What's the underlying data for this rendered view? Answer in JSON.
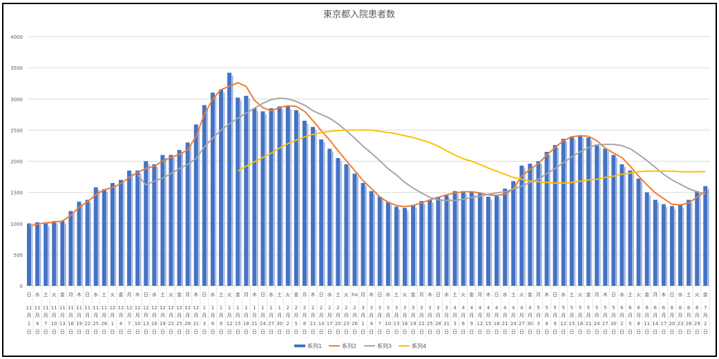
{
  "chart_data": {
    "type": "bar",
    "title": "東京都入院患者数",
    "ylim": [
      0,
      4000
    ],
    "yticks": [
      0,
      500,
      1000,
      1500,
      2000,
      2500,
      3000,
      3500,
      4000
    ],
    "grid": true,
    "legend_position": "bottom",
    "x_labels": {
      "weekdays": [
        "日",
        "水",
        "土",
        "火",
        "金",
        "月",
        "木",
        "日",
        "水",
        "土",
        "火",
        "金",
        "月",
        "木",
        "日",
        "水",
        "土",
        "火",
        "金",
        "月",
        "木",
        "日",
        "水",
        "土",
        "火",
        "金",
        "月",
        "木",
        "日",
        "水",
        "土",
        "火",
        "金",
        "月",
        "木",
        "日",
        "水",
        "土",
        "火",
        "ha",
        "月",
        "木",
        "日",
        "水",
        "土",
        "火",
        "金",
        "月",
        "木",
        "日",
        "水",
        "土",
        "火",
        "金",
        "月",
        "木",
        "日",
        "水",
        "土",
        "火",
        "金",
        "月",
        "木",
        "日",
        "水",
        "土",
        "火",
        "金",
        "月",
        "木",
        "日",
        "水",
        "土",
        "火",
        "金",
        "月",
        "木",
        "日",
        "水",
        "土",
        "火",
        "金"
      ],
      "months": [
        11,
        11,
        11,
        11,
        11,
        11,
        11,
        11,
        11,
        11,
        12,
        12,
        12,
        12,
        12,
        12,
        12,
        12,
        12,
        12,
        12,
        1,
        1,
        1,
        1,
        1,
        1,
        1,
        1,
        1,
        1,
        2,
        2,
        2,
        2,
        2,
        2,
        2,
        2,
        2,
        3,
        3,
        3,
        3,
        3,
        3,
        3,
        3,
        3,
        3,
        3,
        4,
        4,
        4,
        4,
        4,
        4,
        4,
        4,
        4,
        4,
        5,
        5,
        5,
        5,
        5,
        5,
        5,
        5,
        5,
        5,
        6,
        6,
        6,
        6,
        6,
        6,
        6,
        6,
        6,
        6,
        7
      ],
      "days": [
        1,
        4,
        7,
        10,
        13,
        16,
        19,
        22,
        25,
        28,
        1,
        4,
        7,
        10,
        13,
        16,
        19,
        22,
        25,
        28,
        31,
        3,
        6,
        9,
        12,
        15,
        18,
        21,
        24,
        27,
        30,
        2,
        5,
        8,
        11,
        14,
        17,
        20,
        23,
        26,
        1,
        4,
        7,
        10,
        13,
        16,
        19,
        22,
        25,
        28,
        31,
        3,
        6,
        9,
        12,
        15,
        18,
        21,
        24,
        27,
        30,
        3,
        6,
        9,
        12,
        15,
        18,
        21,
        24,
        27,
        30,
        2,
        5,
        8,
        11,
        14,
        17,
        20,
        23,
        26,
        29,
        2
      ],
      "month_suffix": "月",
      "day_suffix": "日"
    },
    "series": [
      {
        "name": "系列1",
        "type": "bar",
        "color": "#4472C4",
        "values": [
          1000,
          1020,
          1000,
          1040,
          1040,
          1200,
          1350,
          1380,
          1580,
          1550,
          1650,
          1700,
          1850,
          1850,
          2000,
          1950,
          2100,
          2100,
          2180,
          2300,
          2590,
          2900,
          3100,
          3150,
          3420,
          3020,
          3050,
          2850,
          2800,
          2850,
          2880,
          2880,
          2820,
          2650,
          2550,
          2350,
          2200,
          2050,
          1950,
          1800,
          1650,
          1520,
          1430,
          1350,
          1270,
          1250,
          1300,
          1360,
          1380,
          1430,
          1450,
          1520,
          1520,
          1500,
          1480,
          1430,
          1460,
          1560,
          1680,
          1930,
          1960,
          2000,
          2150,
          2260,
          2360,
          2400,
          2420,
          2380,
          2270,
          2200,
          2100,
          1950,
          1850,
          1720,
          1500,
          1380,
          1310,
          1280,
          1300,
          1380,
          1520,
          1600
        ]
      },
      {
        "name": "系列2",
        "type": "line",
        "color": "#ED7D31",
        "values": [
          960,
          990,
          1010,
          1020,
          1040,
          1130,
          1260,
          1350,
          1460,
          1540,
          1580,
          1640,
          1740,
          1820,
          1880,
          1920,
          2000,
          2060,
          2110,
          2180,
          2400,
          2750,
          3000,
          3150,
          3200,
          3260,
          3200,
          2980,
          2860,
          2810,
          2860,
          2890,
          2880,
          2800,
          2650,
          2490,
          2340,
          2170,
          2010,
          1850,
          1690,
          1560,
          1430,
          1340,
          1290,
          1270,
          1290,
          1330,
          1380,
          1420,
          1460,
          1490,
          1510,
          1510,
          1490,
          1460,
          1450,
          1470,
          1560,
          1760,
          1870,
          1960,
          2100,
          2220,
          2330,
          2390,
          2410,
          2400,
          2330,
          2210,
          2130,
          2060,
          1920,
          1760,
          1620,
          1490,
          1400,
          1310,
          1300,
          1330,
          1420,
          1520
        ]
      },
      {
        "name": "系列3",
        "type": "line",
        "color": "#A5A5A5",
        "values": [
          null,
          null,
          null,
          null,
          null,
          null,
          null,
          null,
          null,
          null,
          null,
          null,
          null,
          1780,
          1620,
          1680,
          1730,
          1800,
          1880,
          1950,
          2040,
          2230,
          2370,
          2500,
          2600,
          2690,
          2770,
          2850,
          2930,
          2990,
          3010,
          3000,
          2960,
          2900,
          2810,
          2750,
          2690,
          2600,
          2490,
          2370,
          2240,
          2130,
          2010,
          1880,
          1780,
          1660,
          1570,
          1490,
          1420,
          1380,
          1370,
          1370,
          1390,
          1420,
          1440,
          1470,
          1490,
          1510,
          1550,
          1600,
          1660,
          1710,
          1800,
          1880,
          1980,
          2070,
          2150,
          2220,
          2260,
          2270,
          2270,
          2250,
          2200,
          2110,
          2010,
          1900,
          1790,
          1700,
          1630,
          1560,
          1510,
          1470
        ]
      },
      {
        "name": "系列4",
        "type": "line",
        "color": "#FFC000",
        "values": [
          null,
          null,
          null,
          null,
          null,
          null,
          null,
          null,
          null,
          null,
          null,
          null,
          null,
          null,
          null,
          null,
          null,
          null,
          null,
          null,
          null,
          null,
          null,
          null,
          null,
          1840,
          1920,
          1990,
          2060,
          2130,
          2210,
          2280,
          2340,
          2390,
          2430,
          2460,
          2480,
          2490,
          2500,
          2500,
          2500,
          2500,
          2480,
          2460,
          2440,
          2410,
          2380,
          2340,
          2300,
          2240,
          2170,
          2100,
          2040,
          2000,
          1950,
          1890,
          1840,
          1790,
          1740,
          1710,
          1680,
          1670,
          1660,
          1650,
          1650,
          1660,
          1680,
          1700,
          1710,
          1740,
          1760,
          1790,
          1810,
          1830,
          1840,
          1840,
          1840,
          1840,
          1830,
          1830,
          1830,
          1835
        ]
      }
    ]
  }
}
